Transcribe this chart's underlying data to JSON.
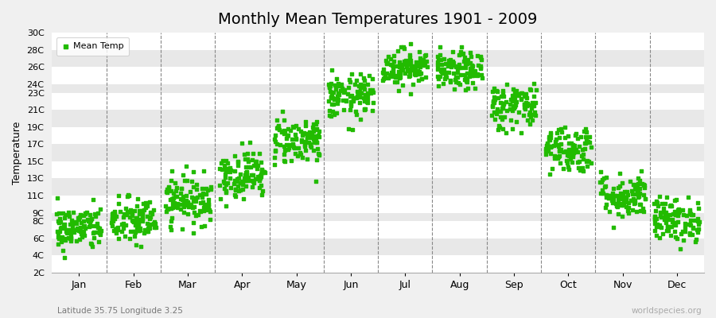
{
  "title": "Monthly Mean Temperatures 1901 - 2009",
  "ylabel": "Temperature",
  "subtitle": "Latitude 35.75 Longitude 3.25",
  "watermark": "worldspecies.org",
  "dot_color": "#22bb00",
  "fig_bg_color": "#f0f0f0",
  "plot_bg_color": "#ffffff",
  "band_color_even": "#ffffff",
  "band_color_odd": "#e8e8e8",
  "legend_label": "Mean Temp",
  "ylim": [
    2,
    30
  ],
  "yticks": [
    2,
    4,
    6,
    8,
    9,
    11,
    13,
    15,
    17,
    19,
    21,
    23,
    24,
    26,
    28,
    30
  ],
  "ytick_labels": [
    "2C",
    "4C",
    "6C",
    "8C",
    "9C",
    "11C",
    "13C",
    "15C",
    "17C",
    "19C",
    "21C",
    "23C",
    "24C",
    "26C",
    "28C",
    "30C"
  ],
  "months": [
    "Jan",
    "Feb",
    "Mar",
    "Apr",
    "May",
    "Jun",
    "Jul",
    "Aug",
    "Sep",
    "Oct",
    "Nov",
    "Dec"
  ],
  "monthly_mean": [
    7.2,
    8.0,
    10.5,
    13.5,
    17.5,
    22.5,
    26.0,
    25.5,
    21.5,
    16.5,
    11.0,
    8.2
  ],
  "monthly_std": [
    1.3,
    1.4,
    1.4,
    1.4,
    1.4,
    1.3,
    1.1,
    1.1,
    1.4,
    1.4,
    1.3,
    1.3
  ],
  "num_years": 109,
  "marker_size": 9,
  "title_fontsize": 14,
  "dashed_line_color": "#888888",
  "spine_color": "#aaaaaa"
}
